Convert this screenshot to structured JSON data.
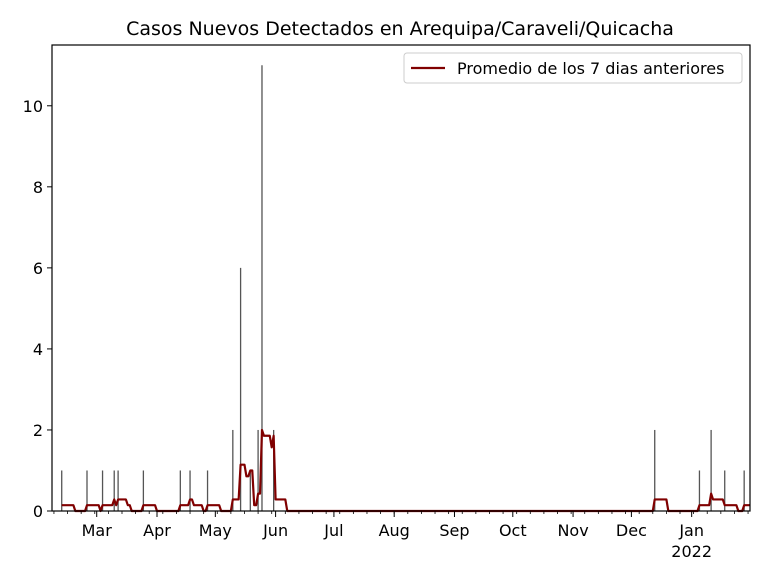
{
  "chart_data": {
    "type": "bar",
    "title": "Casos Nuevos Detectados en Arequipa/Caraveli/Quicacha",
    "xlabel": "",
    "ylabel": "",
    "xlim": [
      "2021-02-06",
      "2022-01-31"
    ],
    "ylim": [
      0,
      11.5
    ],
    "yticks": [
      0,
      2,
      4,
      6,
      8,
      10
    ],
    "xticks": [
      {
        "date": "2021-03-01",
        "label": "Mar"
      },
      {
        "date": "2021-04-01",
        "label": "Apr"
      },
      {
        "date": "2021-05-01",
        "label": "May"
      },
      {
        "date": "2021-06-01",
        "label": "Jun"
      },
      {
        "date": "2021-07-01",
        "label": "Jul"
      },
      {
        "date": "2021-08-01",
        "label": "Aug"
      },
      {
        "date": "2021-09-01",
        "label": "Sep"
      },
      {
        "date": "2021-10-01",
        "label": "Oct"
      },
      {
        "date": "2021-11-01",
        "label": "Nov"
      },
      {
        "date": "2021-12-01",
        "label": "Dec"
      },
      {
        "date": "2022-01-01",
        "label": "Jan",
        "sublabel": "2022"
      }
    ],
    "grid": false,
    "legend": {
      "position": "top-right",
      "entries": [
        "Promedio de los 7 dias anteriores"
      ]
    },
    "daily_cases": [
      {
        "date": "2021-02-11",
        "value": 1
      },
      {
        "date": "2021-02-24",
        "value": 1
      },
      {
        "date": "2021-03-04",
        "value": 1
      },
      {
        "date": "2021-03-10",
        "value": 1
      },
      {
        "date": "2021-03-12",
        "value": 1
      },
      {
        "date": "2021-03-25",
        "value": 1
      },
      {
        "date": "2021-04-13",
        "value": 1
      },
      {
        "date": "2021-04-18",
        "value": 1
      },
      {
        "date": "2021-04-27",
        "value": 1
      },
      {
        "date": "2021-05-10",
        "value": 2
      },
      {
        "date": "2021-05-14",
        "value": 6
      },
      {
        "date": "2021-05-19",
        "value": 1
      },
      {
        "date": "2021-05-23",
        "value": 2
      },
      {
        "date": "2021-05-25",
        "value": 11
      },
      {
        "date": "2021-05-31",
        "value": 2
      },
      {
        "date": "2021-12-13",
        "value": 2
      },
      {
        "date": "2022-01-05",
        "value": 1
      },
      {
        "date": "2022-01-11",
        "value": 2
      },
      {
        "date": "2022-01-18",
        "value": 1
      },
      {
        "date": "2022-01-28",
        "value": 1
      }
    ],
    "series": [
      {
        "name": "Promedio de los 7 dias anteriores",
        "color": "#800000"
      }
    ],
    "bar_color": "#555555"
  }
}
